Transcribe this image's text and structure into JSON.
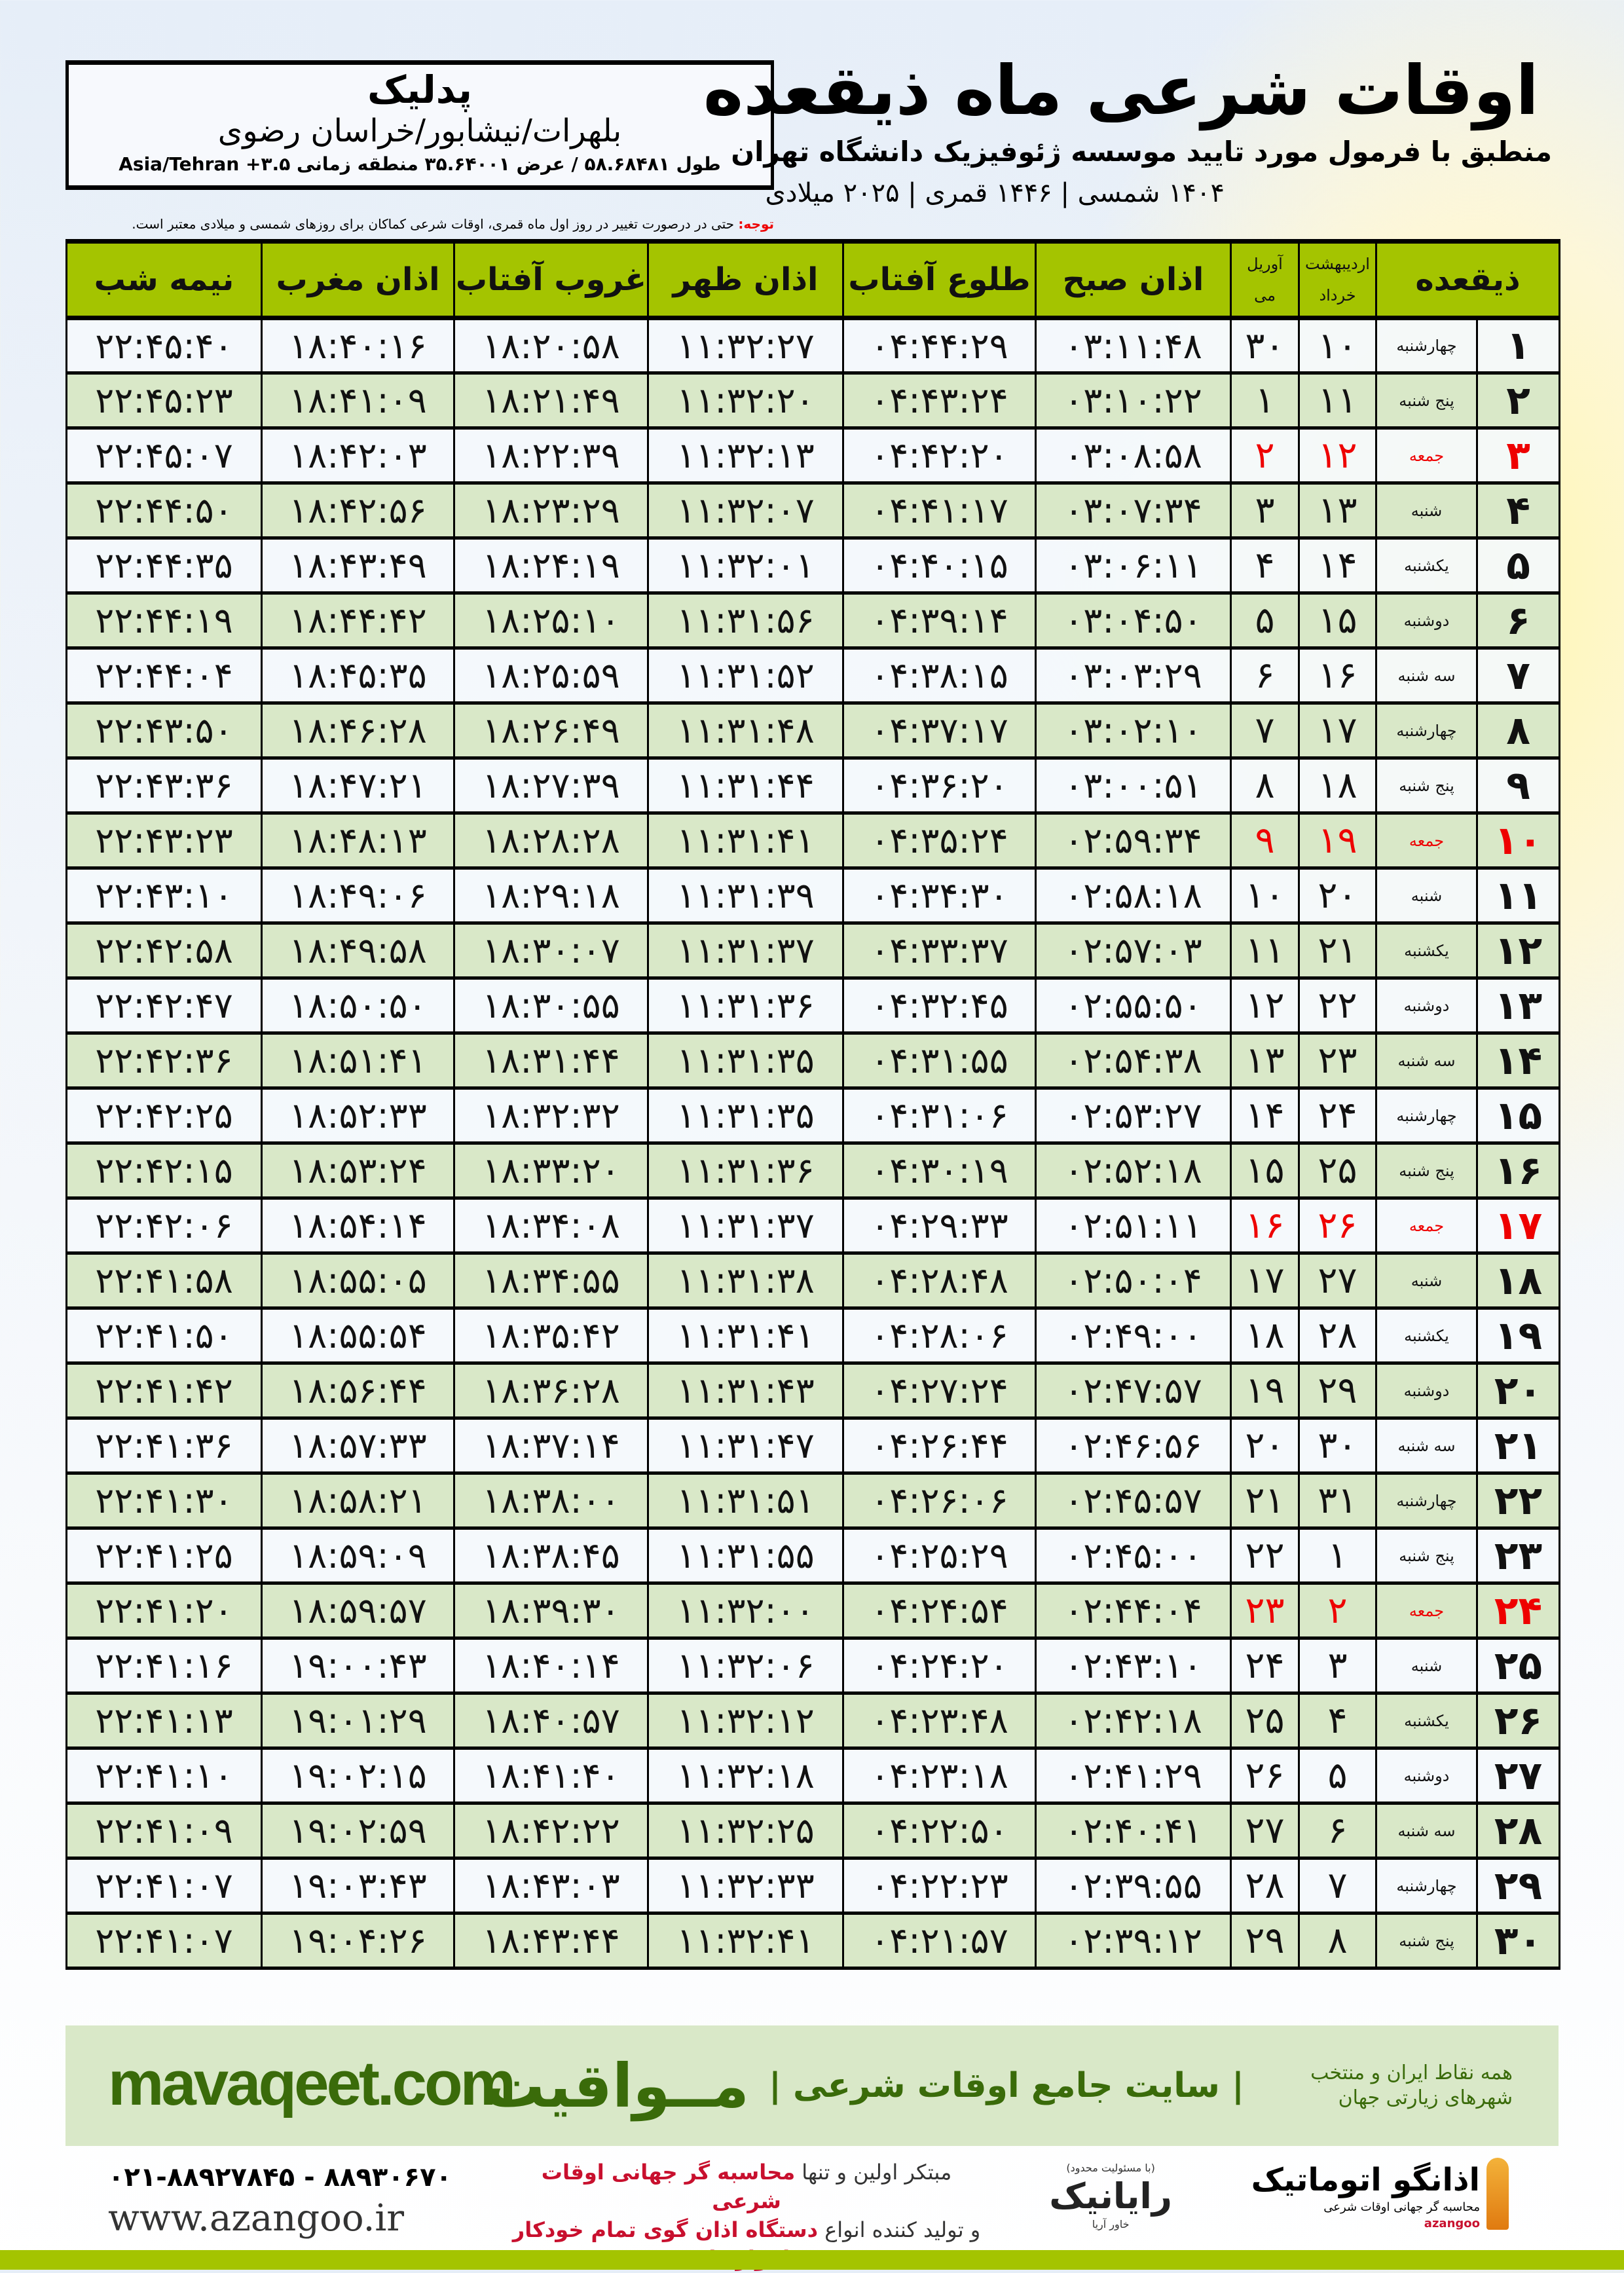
{
  "header": {
    "title": "اوقات شرعی ماه ذیقعده",
    "subtitle": "منطبق با فرمول مورد تایید موسسه ژئوفیزیک دانشگاه تهران",
    "dateline": "۱۴۰۴ شمسی | ۱۴۴۶ قمری | ۲۰۲۵ میلادی",
    "note_label": "توجه:",
    "note_text": " حتی در درصورت تغییر در روز اول ماه قمری، اوقات شرعی کماکان برای روزهای شمسی و میلادی معتبر است."
  },
  "location": {
    "name": "پدلیک",
    "region": "بلهرات/نیشابور/خراسان رضوی",
    "coords": "طول ۵۸.۶۸۴۸۱ / عرض ۳۵.۶۴۰۰۱ منطقه زمانی ۳.۵+ Asia/Tehran"
  },
  "table": {
    "headers": {
      "day": "ذیقعده",
      "shamsi_top": "اردیبهشت",
      "shamsi_bottom": "خرداد",
      "miladi_top": "آوریل",
      "miladi_bottom": "می",
      "sobh": "اذان صبح",
      "tolu": "طلوع آفتاب",
      "zohr": "اذان ظهر",
      "ghorub": "غروب آفتاب",
      "maghrib": "اذان مغرب",
      "nimeh": "نیمه شب"
    },
    "rows": [
      [
        "۱",
        "چهارشنبه",
        "۱۰",
        "۳۰",
        "۰۳:۱۱:۴۸",
        "۰۴:۴۴:۲۹",
        "۱۱:۳۲:۲۷",
        "۱۸:۲۰:۵۸",
        "۱۸:۴۰:۱۶",
        "۲۲:۴۵:۴۰"
      ],
      [
        "۲",
        "پنج شنبه",
        "۱۱",
        "۱",
        "۰۳:۱۰:۲۲",
        "۰۴:۴۳:۲۴",
        "۱۱:۳۲:۲۰",
        "۱۸:۲۱:۴۹",
        "۱۸:۴۱:۰۹",
        "۲۲:۴۵:۲۳"
      ],
      [
        "۳",
        "جمعه",
        "۱۲",
        "۲",
        "۰۳:۰۸:۵۸",
        "۰۴:۴۲:۲۰",
        "۱۱:۳۲:۱۳",
        "۱۸:۲۲:۳۹",
        "۱۸:۴۲:۰۳",
        "۲۲:۴۵:۰۷"
      ],
      [
        "۴",
        "شنبه",
        "۱۳",
        "۳",
        "۰۳:۰۷:۳۴",
        "۰۴:۴۱:۱۷",
        "۱۱:۳۲:۰۷",
        "۱۸:۲۳:۲۹",
        "۱۸:۴۲:۵۶",
        "۲۲:۴۴:۵۰"
      ],
      [
        "۵",
        "یکشنبه",
        "۱۴",
        "۴",
        "۰۳:۰۶:۱۱",
        "۰۴:۴۰:۱۵",
        "۱۱:۳۲:۰۱",
        "۱۸:۲۴:۱۹",
        "۱۸:۴۳:۴۹",
        "۲۲:۴۴:۳۵"
      ],
      [
        "۶",
        "دوشنبه",
        "۱۵",
        "۵",
        "۰۳:۰۴:۵۰",
        "۰۴:۳۹:۱۴",
        "۱۱:۳۱:۵۶",
        "۱۸:۲۵:۱۰",
        "۱۸:۴۴:۴۲",
        "۲۲:۴۴:۱۹"
      ],
      [
        "۷",
        "سه شنبه",
        "۱۶",
        "۶",
        "۰۳:۰۳:۲۹",
        "۰۴:۳۸:۱۵",
        "۱۱:۳۱:۵۲",
        "۱۸:۲۵:۵۹",
        "۱۸:۴۵:۳۵",
        "۲۲:۴۴:۰۴"
      ],
      [
        "۸",
        "چهارشنبه",
        "۱۷",
        "۷",
        "۰۳:۰۲:۱۰",
        "۰۴:۳۷:۱۷",
        "۱۱:۳۱:۴۸",
        "۱۸:۲۶:۴۹",
        "۱۸:۴۶:۲۸",
        "۲۲:۴۳:۵۰"
      ],
      [
        "۹",
        "پنج شنبه",
        "۱۸",
        "۸",
        "۰۳:۰۰:۵۱",
        "۰۴:۳۶:۲۰",
        "۱۱:۳۱:۴۴",
        "۱۸:۲۷:۳۹",
        "۱۸:۴۷:۲۱",
        "۲۲:۴۳:۳۶"
      ],
      [
        "۱۰",
        "جمعه",
        "۱۹",
        "۹",
        "۰۲:۵۹:۳۴",
        "۰۴:۳۵:۲۴",
        "۱۱:۳۱:۴۱",
        "۱۸:۲۸:۲۸",
        "۱۸:۴۸:۱۳",
        "۲۲:۴۳:۲۳"
      ],
      [
        "۱۱",
        "شنبه",
        "۲۰",
        "۱۰",
        "۰۲:۵۸:۱۸",
        "۰۴:۳۴:۳۰",
        "۱۱:۳۱:۳۹",
        "۱۸:۲۹:۱۸",
        "۱۸:۴۹:۰۶",
        "۲۲:۴۳:۱۰"
      ],
      [
        "۱۲",
        "یکشنبه",
        "۲۱",
        "۱۱",
        "۰۲:۵۷:۰۳",
        "۰۴:۳۳:۳۷",
        "۱۱:۳۱:۳۷",
        "۱۸:۳۰:۰۷",
        "۱۸:۴۹:۵۸",
        "۲۲:۴۲:۵۸"
      ],
      [
        "۱۳",
        "دوشنبه",
        "۲۲",
        "۱۲",
        "۰۲:۵۵:۵۰",
        "۰۴:۳۲:۴۵",
        "۱۱:۳۱:۳۶",
        "۱۸:۳۰:۵۵",
        "۱۸:۵۰:۵۰",
        "۲۲:۴۲:۴۷"
      ],
      [
        "۱۴",
        "سه شنبه",
        "۲۳",
        "۱۳",
        "۰۲:۵۴:۳۸",
        "۰۴:۳۱:۵۵",
        "۱۱:۳۱:۳۵",
        "۱۸:۳۱:۴۴",
        "۱۸:۵۱:۴۱",
        "۲۲:۴۲:۳۶"
      ],
      [
        "۱۵",
        "چهارشنبه",
        "۲۴",
        "۱۴",
        "۰۲:۵۳:۲۷",
        "۰۴:۳۱:۰۶",
        "۱۱:۳۱:۳۵",
        "۱۸:۳۲:۳۲",
        "۱۸:۵۲:۳۳",
        "۲۲:۴۲:۲۵"
      ],
      [
        "۱۶",
        "پنج شنبه",
        "۲۵",
        "۱۵",
        "۰۲:۵۲:۱۸",
        "۰۴:۳۰:۱۹",
        "۱۱:۳۱:۳۶",
        "۱۸:۳۳:۲۰",
        "۱۸:۵۳:۲۴",
        "۲۲:۴۲:۱۵"
      ],
      [
        "۱۷",
        "جمعه",
        "۲۶",
        "۱۶",
        "۰۲:۵۱:۱۱",
        "۰۴:۲۹:۳۳",
        "۱۱:۳۱:۳۷",
        "۱۸:۳۴:۰۸",
        "۱۸:۵۴:۱۴",
        "۲۲:۴۲:۰۶"
      ],
      [
        "۱۸",
        "شنبه",
        "۲۷",
        "۱۷",
        "۰۲:۵۰:۰۴",
        "۰۴:۲۸:۴۸",
        "۱۱:۳۱:۳۸",
        "۱۸:۳۴:۵۵",
        "۱۸:۵۵:۰۵",
        "۲۲:۴۱:۵۸"
      ],
      [
        "۱۹",
        "یکشنبه",
        "۲۸",
        "۱۸",
        "۰۲:۴۹:۰۰",
        "۰۴:۲۸:۰۶",
        "۱۱:۳۱:۴۱",
        "۱۸:۳۵:۴۲",
        "۱۸:۵۵:۵۴",
        "۲۲:۴۱:۵۰"
      ],
      [
        "۲۰",
        "دوشنبه",
        "۲۹",
        "۱۹",
        "۰۲:۴۷:۵۷",
        "۰۴:۲۷:۲۴",
        "۱۱:۳۱:۴۳",
        "۱۸:۳۶:۲۸",
        "۱۸:۵۶:۴۴",
        "۲۲:۴۱:۴۲"
      ],
      [
        "۲۱",
        "سه شنبه",
        "۳۰",
        "۲۰",
        "۰۲:۴۶:۵۶",
        "۰۴:۲۶:۴۴",
        "۱۱:۳۱:۴۷",
        "۱۸:۳۷:۱۴",
        "۱۸:۵۷:۳۳",
        "۲۲:۴۱:۳۶"
      ],
      [
        "۲۲",
        "چهارشنبه",
        "۳۱",
        "۲۱",
        "۰۲:۴۵:۵۷",
        "۰۴:۲۶:۰۶",
        "۱۱:۳۱:۵۱",
        "۱۸:۳۸:۰۰",
        "۱۸:۵۸:۲۱",
        "۲۲:۴۱:۳۰"
      ],
      [
        "۲۳",
        "پنج شنبه",
        "۱",
        "۲۲",
        "۰۲:۴۵:۰۰",
        "۰۴:۲۵:۲۹",
        "۱۱:۳۱:۵۵",
        "۱۸:۳۸:۴۵",
        "۱۸:۵۹:۰۹",
        "۲۲:۴۱:۲۵"
      ],
      [
        "۲۴",
        "جمعه",
        "۲",
        "۲۳",
        "۰۲:۴۴:۰۴",
        "۰۴:۲۴:۵۴",
        "۱۱:۳۲:۰۰",
        "۱۸:۳۹:۳۰",
        "۱۸:۵۹:۵۷",
        "۲۲:۴۱:۲۰"
      ],
      [
        "۲۵",
        "شنبه",
        "۳",
        "۲۴",
        "۰۲:۴۳:۱۰",
        "۰۴:۲۴:۲۰",
        "۱۱:۳۲:۰۶",
        "۱۸:۴۰:۱۴",
        "۱۹:۰۰:۴۳",
        "۲۲:۴۱:۱۶"
      ],
      [
        "۲۶",
        "یکشنبه",
        "۴",
        "۲۵",
        "۰۲:۴۲:۱۸",
        "۰۴:۲۳:۴۸",
        "۱۱:۳۲:۱۲",
        "۱۸:۴۰:۵۷",
        "۱۹:۰۱:۲۹",
        "۲۲:۴۱:۱۳"
      ],
      [
        "۲۷",
        "دوشنبه",
        "۵",
        "۲۶",
        "۰۲:۴۱:۲۹",
        "۰۴:۲۳:۱۸",
        "۱۱:۳۲:۱۸",
        "۱۸:۴۱:۴۰",
        "۱۹:۰۲:۱۵",
        "۲۲:۴۱:۱۰"
      ],
      [
        "۲۸",
        "سه شنبه",
        "۶",
        "۲۷",
        "۰۲:۴۰:۴۱",
        "۰۴:۲۲:۵۰",
        "۱۱:۳۲:۲۵",
        "۱۸:۴۲:۲۲",
        "۱۹:۰۲:۵۹",
        "۲۲:۴۱:۰۹"
      ],
      [
        "۲۹",
        "چهارشنبه",
        "۷",
        "۲۸",
        "۰۲:۳۹:۵۵",
        "۰۴:۲۲:۲۳",
        "۱۱:۳۲:۳۳",
        "۱۸:۴۳:۰۳",
        "۱۹:۰۳:۴۳",
        "۲۲:۴۱:۰۷"
      ],
      [
        "۳۰",
        "پنج شنبه",
        "۸",
        "۲۹",
        "۰۲:۳۹:۱۲",
        "۰۴:۲۱:۵۷",
        "۱۱:۳۲:۴۱",
        "۱۸:۴۳:۴۴",
        "۱۹:۰۴:۲۶",
        "۲۲:۴۱:۰۷"
      ]
    ],
    "holiday_weekday": "جمعه",
    "holiday_color": "#e00000"
  },
  "footer": {
    "brand": "مــواقیت",
    "tagline": "| سایت جامع اوقات شرعی |",
    "tagline_sub": "همه نقاط ایران و منتخب شهرهای زیارتی جهان",
    "url": "mavaqeet.com",
    "phones": "۰۲۱-۸۸۹۲۷۸۴۵ - ۸۸۹۳۰۶۷۰",
    "azangoo_url": "www.azangoo.ir",
    "promo1_a": "مبتکر اولین و تنها ",
    "promo1_b": "محاسبه گر جهانی اوقات شرعی",
    "promo2_a": "و تولید کننده انواع ",
    "promo2_b": "دستگاه اذان گوی تمام خودکار ماهواره ای",
    "rayanik": "رایانیک",
    "rayanik_sub": "خاور آریا",
    "rayanik_note": "(با مسئولیت محدود)",
    "azangoo_name": "اذانگو اتوماتیک",
    "azangoo_sub": "محاسبه گر جهانی اوقات شرعی",
    "azangoo_en": "azangoo",
    "brand_color": "#3a6b0a",
    "accent_green": "#a4c400"
  }
}
